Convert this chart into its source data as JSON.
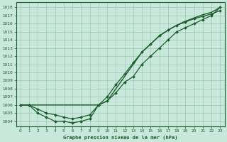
{
  "xlabel": "Graphe pression niveau de la mer (hPa)",
  "bg_color": "#c8e8dc",
  "grid_color": "#a0c8b8",
  "line_color": "#1a5c2a",
  "text_color": "#1a5c2a",
  "ylim": [
    1003.4,
    1018.6
  ],
  "xlim": [
    -0.5,
    23.5
  ],
  "ytick_vals": [
    1004,
    1005,
    1006,
    1007,
    1008,
    1009,
    1010,
    1011,
    1012,
    1013,
    1014,
    1015,
    1016,
    1017,
    1018
  ],
  "xtick_vals": [
    0,
    1,
    2,
    3,
    4,
    5,
    6,
    7,
    8,
    9,
    10,
    11,
    12,
    13,
    14,
    15,
    16,
    17,
    18,
    19,
    20,
    21,
    22,
    23
  ],
  "line1_y": [
    1006,
    1006,
    1006,
    1006,
    1006,
    1006,
    1006,
    1006,
    1006,
    1006,
    1006.5,
    1008,
    1009.5,
    1011,
    1012.5,
    1013.5,
    1014.5,
    1015.2,
    1015.8,
    1016.3,
    1016.7,
    1017.1,
    1017.4,
    1018.0
  ],
  "line2_y": [
    1006,
    1006,
    1005.5,
    1005,
    1004.8,
    1004.5,
    1004.3,
    1004.5,
    1004.8,
    1006,
    1007,
    1008.5,
    1009.8,
    1011.2,
    1012.5,
    1013.5,
    1014.5,
    1015.2,
    1015.8,
    1016.2,
    1016.6,
    1016.9,
    1017.2,
    1017.6
  ],
  "line3_y": [
    1006,
    1006,
    1005,
    1004.5,
    1004,
    1004,
    1003.8,
    1004,
    1004.3,
    1006,
    1006.5,
    1007.5,
    1008.8,
    1009.5,
    1011,
    1012,
    1013,
    1014,
    1015,
    1015.5,
    1016,
    1016.5,
    1017,
    1018
  ]
}
